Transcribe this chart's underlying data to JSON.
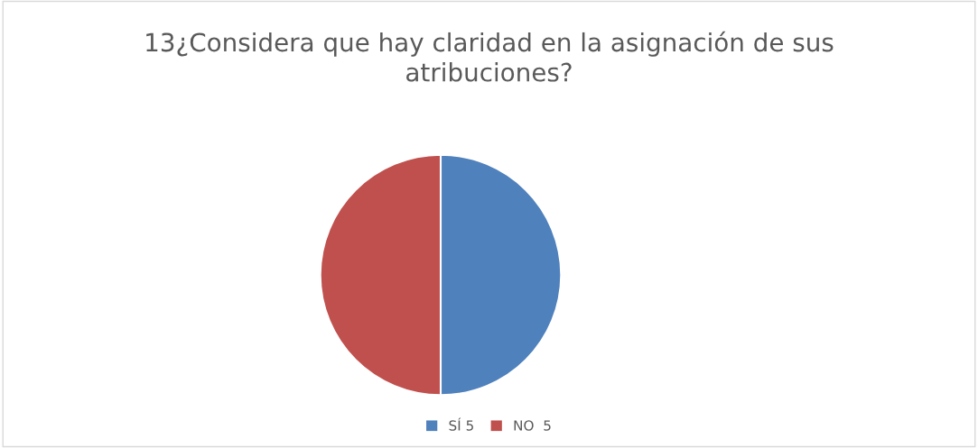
{
  "chart_data": {
    "type": "pie",
    "title": "13¿Considera que hay claridad en la asignación de sus atribuciones?",
    "categories": [
      "SÍ 5",
      "NO  5"
    ],
    "values": [
      5,
      5
    ],
    "colors": [
      "#4f81bd",
      "#c0504d"
    ],
    "legend": "bottom"
  }
}
